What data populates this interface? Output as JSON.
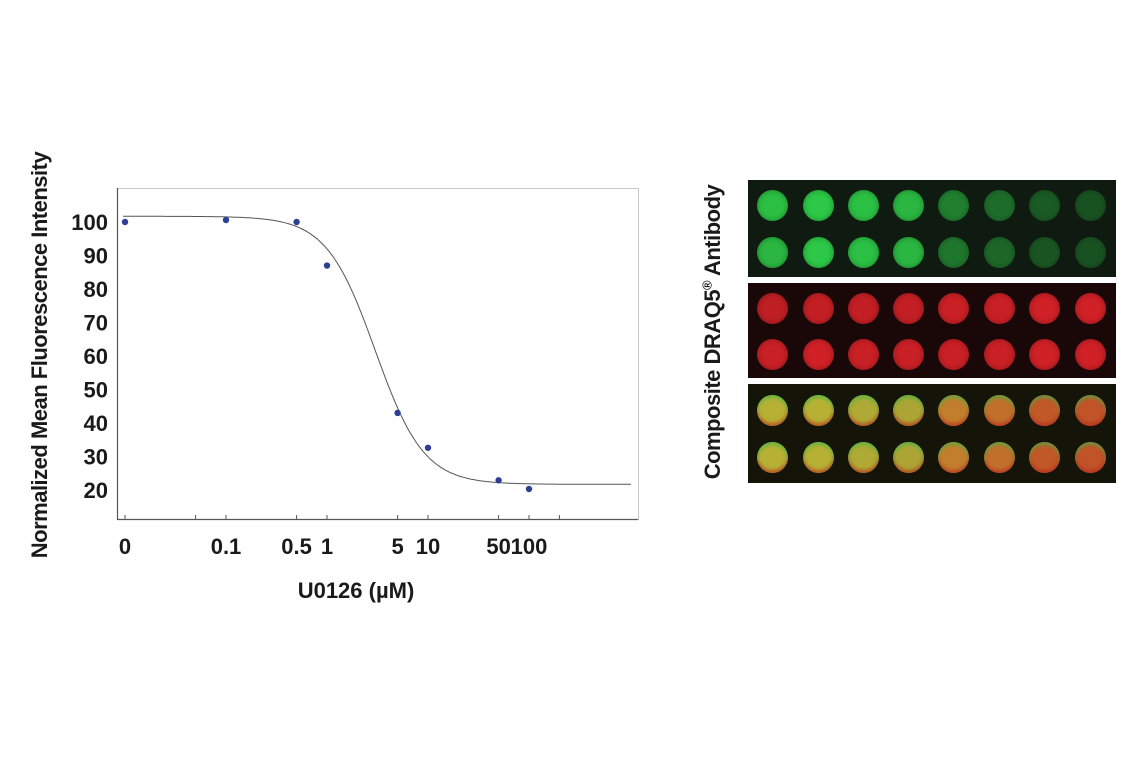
{
  "chart_data": {
    "type": "scatter",
    "xlabel": "U0126 (µM)",
    "ylabel": "Normalized Mean Fluorescence Intensity",
    "x_scale": "log",
    "x_tick_labels": [
      "0",
      "0.1",
      "0.5",
      "1",
      "5",
      "10",
      "50",
      "100"
    ],
    "y_ticks": [
      20,
      30,
      40,
      50,
      60,
      70,
      80,
      90,
      100
    ],
    "ylim": [
      8,
      110
    ],
    "grid": false,
    "points": [
      {
        "x": 0,
        "y": 100
      },
      {
        "x": 0.1,
        "y": 100.6
      },
      {
        "x": 0.5,
        "y": 100
      },
      {
        "x": 1,
        "y": 87
      },
      {
        "x": 5,
        "y": 43
      },
      {
        "x": 10,
        "y": 32.6
      },
      {
        "x": 50,
        "y": 22.9
      },
      {
        "x": 100,
        "y": 20.3
      }
    ],
    "fit_curve": {
      "type": "sigmoidal dose-response",
      "top": 101.7,
      "bottom": 21.7,
      "ic50": 3.0,
      "hill": 1.8
    },
    "point_color": "#2b3f94",
    "curve_color": "#555555"
  },
  "image_panel": {
    "label_composite": "Composite",
    "label_draq5": "DRAQ5",
    "label_registered": "®",
    "label_antibody": "Antibody",
    "panels": [
      {
        "name": "Antibody",
        "color": "#2fd24a",
        "intensities": [
          [
            0.9,
            0.95,
            0.9,
            0.85,
            0.55,
            0.45,
            0.35,
            0.3
          ],
          [
            0.85,
            0.95,
            0.9,
            0.85,
            0.5,
            0.42,
            0.32,
            0.3
          ]
        ]
      },
      {
        "name": "DRAQ5",
        "color": "#e8252b",
        "intensities": [
          [
            0.8,
            0.82,
            0.82,
            0.82,
            0.85,
            0.85,
            0.88,
            0.88
          ],
          [
            0.85,
            0.88,
            0.85,
            0.85,
            0.85,
            0.85,
            0.88,
            0.88
          ]
        ]
      },
      {
        "name": "Composite",
        "colors": [
          "#c8c23a",
          "#c8c23a",
          "#c0bb3a",
          "#bdb53a",
          "#d58a32",
          "#d47a30",
          "#d4602c",
          "#d45a2c"
        ]
      }
    ]
  }
}
